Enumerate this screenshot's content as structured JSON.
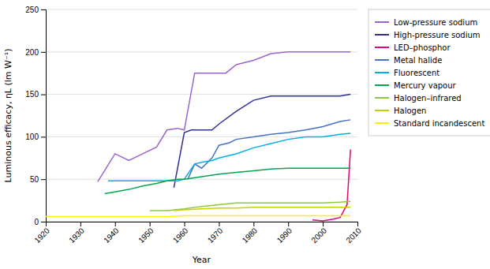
{
  "chart_data": {
    "type": "line",
    "xlabel": "Year",
    "ylabel": "Luminous efficacy, ηL (lm W⁻¹)",
    "xlim": [
      1920,
      2010
    ],
    "ylim": [
      0,
      250
    ],
    "xticks": [
      1920,
      1930,
      1940,
      1950,
      1960,
      1970,
      1980,
      1990,
      2000,
      2010
    ],
    "yticks": [
      0,
      50,
      100,
      150,
      200,
      250
    ],
    "grid": "y",
    "legend": "right",
    "series": [
      {
        "name": "Low-pressure sodium",
        "color": "#9966CC",
        "x": [
          1935,
          1940,
          1944,
          1948,
          1952,
          1955,
          1958,
          1960,
          1963,
          1968,
          1972,
          1975,
          1980,
          1985,
          1990,
          1995,
          2000,
          2005,
          2008
        ],
        "values": [
          47,
          80,
          72,
          80,
          88,
          108,
          110,
          108,
          175,
          175,
          175,
          185,
          190,
          198,
          200,
          200,
          200,
          200,
          200
        ]
      },
      {
        "name": "High-pressure sodium",
        "color": "#2E3192",
        "x": [
          1957,
          1960,
          1962,
          1965,
          1968,
          1970,
          1975,
          1980,
          1985,
          1990,
          1995,
          2000,
          2005,
          2008
        ],
        "values": [
          40,
          105,
          108,
          108,
          108,
          115,
          130,
          143,
          148,
          148,
          148,
          148,
          148,
          150
        ]
      },
      {
        "name": "LED–phosphor",
        "color": "#E8007D",
        "x": [
          1997,
          2000,
          2003,
          2005,
          2007,
          2008
        ],
        "values": [
          2,
          1,
          3,
          5,
          20,
          85
        ]
      },
      {
        "name": "Metal halide",
        "color": "#4472C4",
        "x": [
          1961,
          1963,
          1965,
          1968,
          1970,
          1973,
          1975,
          1980,
          1985,
          1990,
          1995,
          2000,
          2005,
          2008
        ],
        "values": [
          50,
          68,
          63,
          75,
          90,
          93,
          97,
          100,
          103,
          105,
          108,
          112,
          118,
          120
        ]
      },
      {
        "name": "Fluorescent",
        "color": "#00AEEF",
        "x": [
          1938,
          1942,
          1946,
          1950,
          1955,
          1958,
          1960,
          1963,
          1965,
          1968,
          1970,
          1975,
          1980,
          1985,
          1990,
          1995,
          2000,
          2005,
          2008
        ],
        "values": [
          48,
          48,
          48,
          48,
          48,
          48,
          50,
          68,
          70,
          72,
          75,
          80,
          87,
          92,
          97,
          100,
          100,
          103,
          104
        ]
      },
      {
        "name": "Mercury vapour",
        "color": "#00A651",
        "x": [
          1937,
          1940,
          1944,
          1948,
          1952,
          1955,
          1958,
          1960,
          1965,
          1970,
          1975,
          1980,
          1985,
          1990,
          1995,
          2000,
          2005,
          2008
        ],
        "values": [
          33,
          35,
          38,
          42,
          45,
          48,
          50,
          50,
          53,
          56,
          58,
          60,
          62,
          63,
          63,
          63,
          63,
          63
        ]
      },
      {
        "name": "Halogen–infrared",
        "color": "#8DC63F",
        "x": [
          1950,
          1955,
          1960,
          1965,
          1970,
          1975,
          1980,
          1985,
          1990,
          1995,
          2000,
          2005,
          2008
        ],
        "values": [
          13,
          13,
          15,
          18,
          20,
          22,
          22,
          22,
          22,
          22,
          22,
          23,
          24
        ]
      },
      {
        "name": "Halogen",
        "color": "#C8D200",
        "x": [
          1957,
          1960,
          1965,
          1970,
          1975,
          1980,
          1985,
          1990,
          1995,
          2000,
          2005,
          2008
        ],
        "values": [
          13,
          14,
          15,
          16,
          16,
          17,
          17,
          17,
          17,
          17,
          17,
          17
        ]
      },
      {
        "name": "Standard incandescent",
        "color": "#FFF200",
        "x": [
          1920,
          1925,
          1930,
          1935,
          1940,
          1945,
          1950,
          1955,
          1960,
          1965,
          1970,
          1975,
          1980,
          1985,
          1990,
          1995,
          2000,
          2005,
          2008
        ],
        "values": [
          6,
          6,
          6,
          6,
          6,
          6,
          6,
          6,
          7,
          7,
          7,
          7,
          7,
          7,
          7,
          7,
          7,
          7,
          7
        ]
      }
    ]
  }
}
